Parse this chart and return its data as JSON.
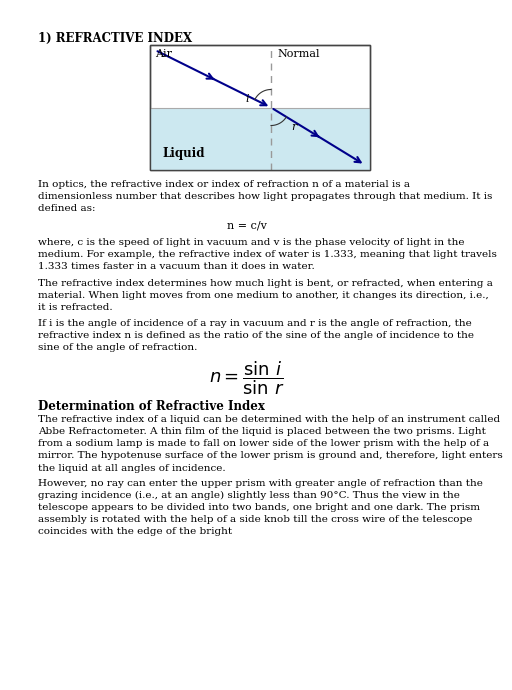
{
  "title": "1) REFRACTIVE INDEX",
  "bg_color": "#ffffff",
  "diagram": {
    "liquid_color": "#cce8f0",
    "air_label": "Air",
    "liquid_label": "Liquid",
    "normal_label": "Normal",
    "angle_i_label": "i",
    "angle_r_label": "r",
    "line_color": "#00008B"
  },
  "formula_ncv": "n = c/v",
  "section_header": "Determination of Refractive Index",
  "para1": "In optics, the refractive index or index of refraction n of a material is a dimensionless number that describes how light propagates through that medium. It is defined as:",
  "para2": "where, c is the speed of light in vacuum and v is the phase velocity of light in the medium. For example, the refractive index of water is 1.333, meaning that light travels 1.333 times faster in a vacuum than it does in water.",
  "para3": "The refractive index determines how much light is bent, or refracted, when entering a material. When light moves from one medium to another, it changes its direction, i.e., it is refracted.",
  "para4": "If i is the angle of incidence of a ray in vacuum and r is the angle of refraction, the refractive index n is defined as the ratio of the sine of the angle of incidence to the sine of the angle of refraction.",
  "para5a": "The refractive index of a liquid can be determined with the help of an instrument called ",
  "para5b": "Abbe Refractometer",
  "para5c": ". A thin film of the liquid is placed between the two prisms. Light from a sodium lamp is made to fall on lower side of the lower prism with the help of a mirror. The hypotenuse surface of the lower prism is ground and, therefore, light enters the liquid at all angles of incidence.",
  "para6": "However, no ray can enter the upper prism with greater angle of refraction than the grazing incidence (i.e., at an angle) slightly less than 90°C. Thus the view in the telescope appears to be divided into two bands, one bright and one dark. The prism assembly is rotated with the help of a side knob till the cross wire of the telescope coincides with the edge of the bright",
  "font_size_body": 7.5,
  "font_size_title": 8.5,
  "font_size_header": 8.5,
  "font_size_diagram": 8.0
}
